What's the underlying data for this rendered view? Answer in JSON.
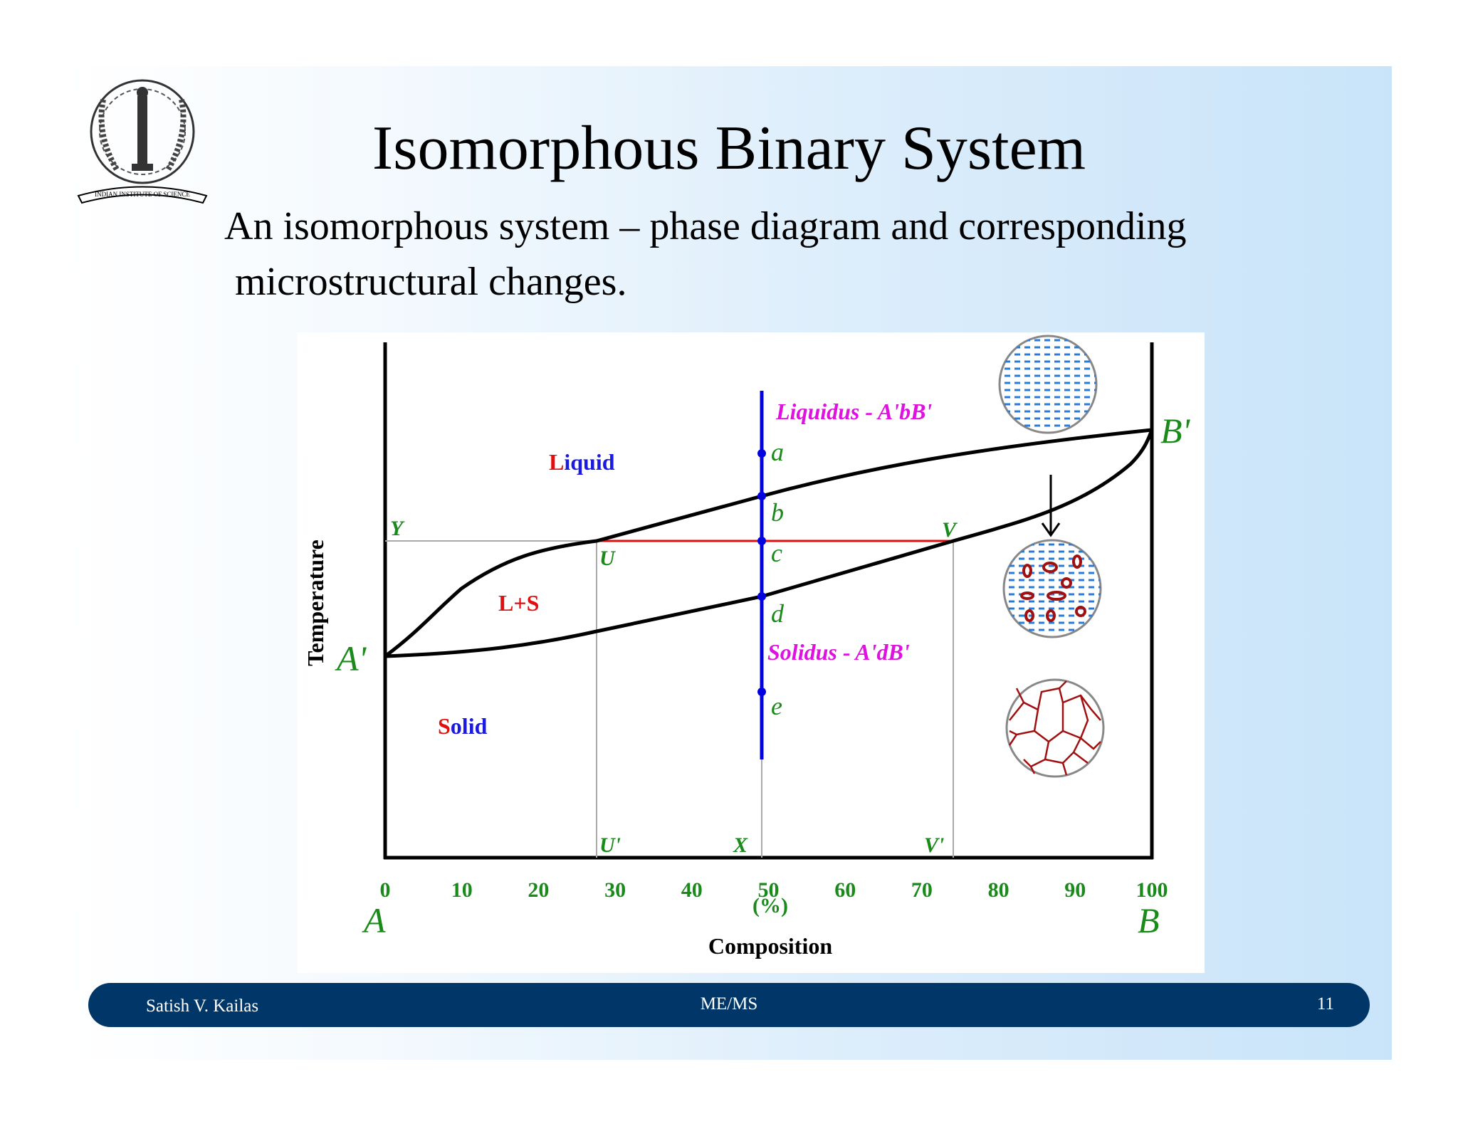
{
  "slide": {
    "title": "Isomorphous Binary System",
    "subtitle_line1": "An isomorphous system – phase diagram and corresponding",
    "subtitle_line2": "microstructural changes."
  },
  "logo": {
    "icon": "indian-institute-of-science-seal",
    "text": "INDIAN INSTITUTE OF SCIENCE"
  },
  "diagram": {
    "ylabel": "Temperature",
    "xlabel": "Composition",
    "xunit": "(%)",
    "x_ticks": [
      "0",
      "10",
      "20",
      "30",
      "40",
      "50",
      "60",
      "70",
      "80",
      "90",
      "100"
    ],
    "end_left": "A",
    "end_right": "B",
    "point_A_prime": "A'",
    "point_B_prime": "B'",
    "liquidus_label": "Liquidus - A'bB'",
    "solidus_label": "Solidus - A'dB'",
    "region_liquid_first": "L",
    "region_liquid_rest": "iquid",
    "region_ls": "L+S",
    "region_solid_first": "S",
    "region_solid_rest": "olid",
    "points": [
      "a",
      "b",
      "c",
      "d",
      "e"
    ],
    "tie_line_labels": {
      "Y": "Y",
      "U": "U",
      "V": "V",
      "U_prime": "U'",
      "X": "X",
      "V_prime": "V'"
    },
    "colors": {
      "liquidus_label": "#e010e0",
      "axis_labels": "#1a8a1a",
      "vertical_line": "#0000e0",
      "tie_line": "#e01010",
      "liquid_dash": "#2a7ad8",
      "solid_particle": "#a01010"
    }
  },
  "footer": {
    "author": "Satish V. Kailas",
    "dept": "ME/MS",
    "page": "11"
  }
}
